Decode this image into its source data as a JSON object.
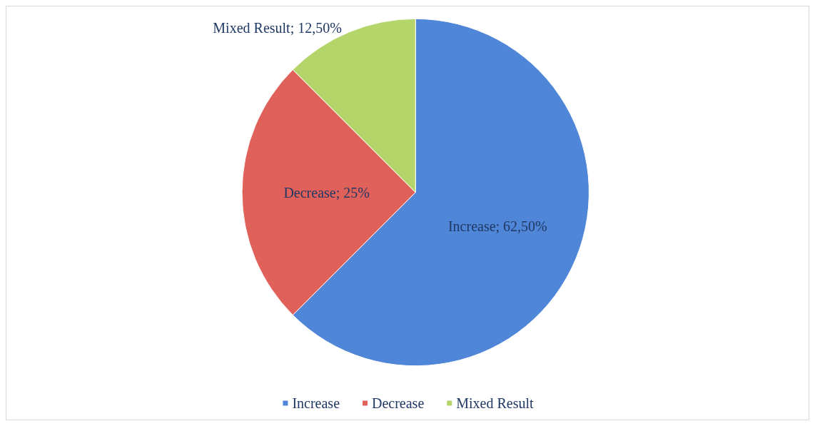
{
  "chart_data": {
    "type": "pie",
    "categories": [
      "Increase",
      "Decrease",
      "Mixed Result"
    ],
    "values": [
      62.5,
      25,
      12.5
    ],
    "colors": [
      "#4f86d8",
      "#e0605a",
      "#b3d56a"
    ],
    "value_labels": [
      "Increase; 62,50%",
      "Decrease; 25%",
      "Mixed Result; 12,50%"
    ],
    "legend": "bottom"
  }
}
